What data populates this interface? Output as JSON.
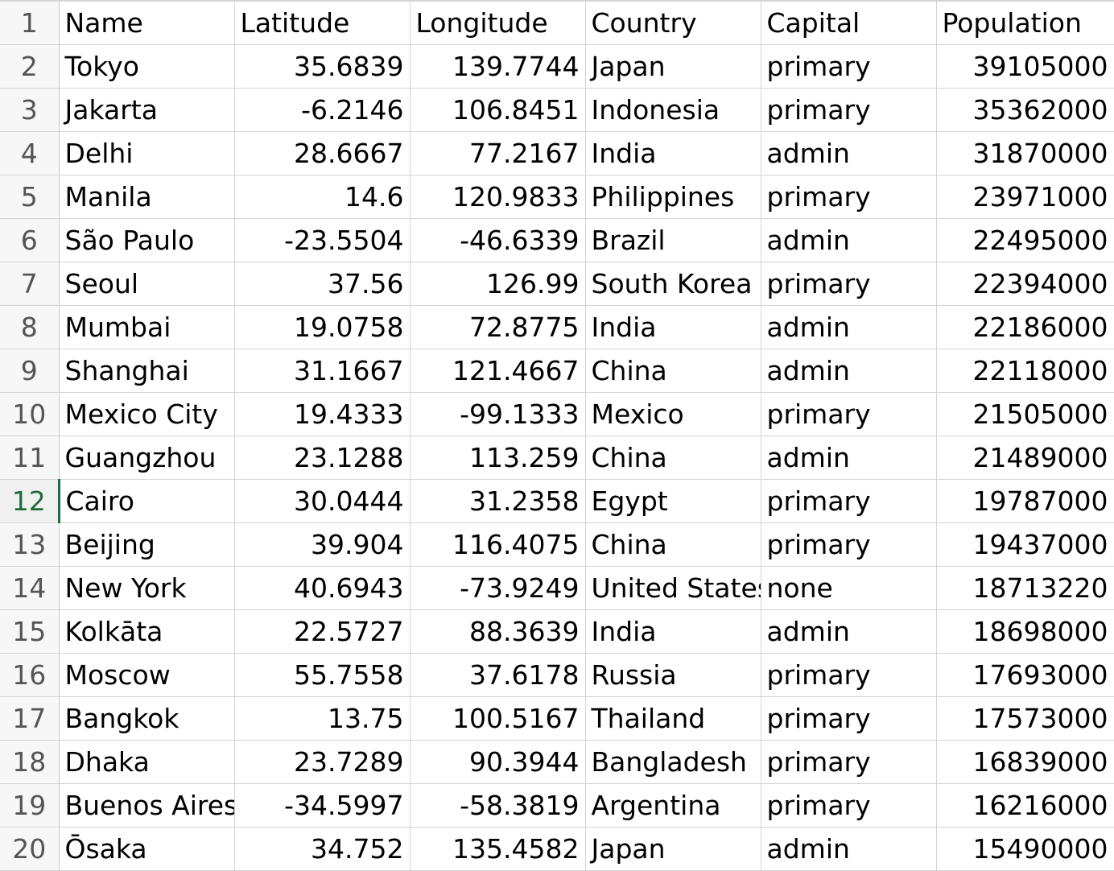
{
  "spreadsheet": {
    "active_row": 12,
    "header_row": {
      "row_number": "1",
      "cells": [
        "Name",
        "Latitude",
        "Longitude",
        "Country",
        "Capital",
        "Population"
      ]
    },
    "rows": [
      {
        "row_number": "2",
        "cells": [
          "Tokyo",
          "35.6839",
          "139.7744",
          "Japan",
          "primary",
          "39105000"
        ]
      },
      {
        "row_number": "3",
        "cells": [
          "Jakarta",
          "-6.2146",
          "106.8451",
          "Indonesia",
          "primary",
          "35362000"
        ]
      },
      {
        "row_number": "4",
        "cells": [
          "Delhi",
          "28.6667",
          "77.2167",
          "India",
          "admin",
          "31870000"
        ]
      },
      {
        "row_number": "5",
        "cells": [
          "Manila",
          "14.6",
          "120.9833",
          "Philippines",
          "primary",
          "23971000"
        ]
      },
      {
        "row_number": "6",
        "cells": [
          "São Paulo",
          "-23.5504",
          "-46.6339",
          "Brazil",
          "admin",
          "22495000"
        ]
      },
      {
        "row_number": "7",
        "cells": [
          "Seoul",
          "37.56",
          "126.99",
          "South Korea",
          "primary",
          "22394000"
        ]
      },
      {
        "row_number": "8",
        "cells": [
          "Mumbai",
          "19.0758",
          "72.8775",
          "India",
          "admin",
          "22186000"
        ]
      },
      {
        "row_number": "9",
        "cells": [
          "Shanghai",
          "31.1667",
          "121.4667",
          "China",
          "admin",
          "22118000"
        ]
      },
      {
        "row_number": "10",
        "cells": [
          "Mexico City",
          "19.4333",
          "-99.1333",
          "Mexico",
          "primary",
          "21505000"
        ]
      },
      {
        "row_number": "11",
        "cells": [
          "Guangzhou",
          "23.1288",
          "113.259",
          "China",
          "admin",
          "21489000"
        ]
      },
      {
        "row_number": "12",
        "cells": [
          "Cairo",
          "30.0444",
          "31.2358",
          "Egypt",
          "primary",
          "19787000"
        ]
      },
      {
        "row_number": "13",
        "cells": [
          "Beijing",
          "39.904",
          "116.4075",
          "China",
          "primary",
          "19437000"
        ]
      },
      {
        "row_number": "14",
        "cells": [
          "New York",
          "40.6943",
          "-73.9249",
          "United States",
          "none",
          "18713220"
        ]
      },
      {
        "row_number": "15",
        "cells": [
          "Kolkāta",
          "22.5727",
          "88.3639",
          "India",
          "admin",
          "18698000"
        ]
      },
      {
        "row_number": "16",
        "cells": [
          "Moscow",
          "55.7558",
          "37.6178",
          "Russia",
          "primary",
          "17693000"
        ]
      },
      {
        "row_number": "17",
        "cells": [
          "Bangkok",
          "13.75",
          "100.5167",
          "Thailand",
          "primary",
          "17573000"
        ]
      },
      {
        "row_number": "18",
        "cells": [
          "Dhaka",
          "23.7289",
          "90.3944",
          "Bangladesh",
          "primary",
          "16839000"
        ]
      },
      {
        "row_number": "19",
        "cells": [
          "Buenos Aires",
          "-34.5997",
          "-58.3819",
          "Argentina",
          "primary",
          "16216000"
        ]
      },
      {
        "row_number": "20",
        "cells": [
          "Ōsaka",
          "34.752",
          "135.4582",
          "Japan",
          "admin",
          "15490000"
        ]
      }
    ]
  }
}
